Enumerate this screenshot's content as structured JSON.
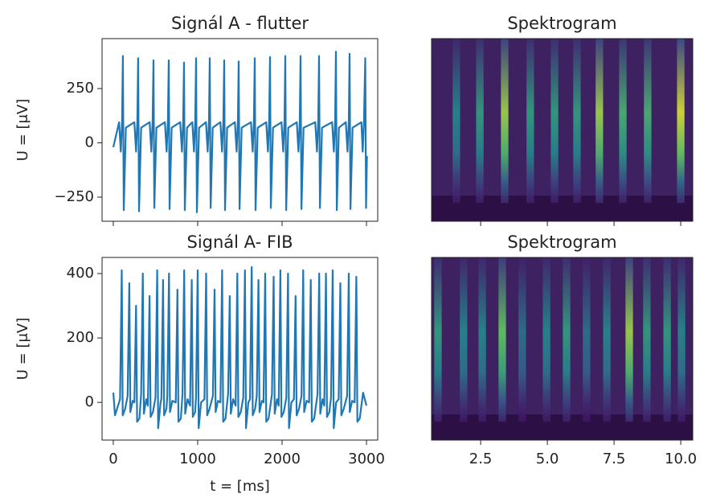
{
  "chart_data": [
    {
      "type": "line",
      "title": "Signál A - flutter",
      "ylabel": "U = [μV]",
      "color": "#1f77b4",
      "x": [
        0,
        69,
        89,
        104,
        114,
        124,
        149,
        250,
        270,
        285,
        295,
        305,
        330,
        431,
        451,
        466,
        476,
        486,
        511,
        612,
        632,
        647,
        657,
        667,
        692,
        793,
        813,
        828,
        838,
        848,
        873,
        936,
        956,
        971,
        981,
        991,
        1016,
        1098,
        1118,
        1133,
        1143,
        1153,
        1178,
        1269,
        1289,
        1304,
        1314,
        1324,
        1349,
        1441,
        1461,
        1476,
        1486,
        1496,
        1521,
        1631,
        1651,
        1666,
        1676,
        1686,
        1711,
        1812,
        1832,
        1847,
        1857,
        1867,
        1892,
        1993,
        2013,
        2028,
        2038,
        2048,
        2073,
        2174,
        2194,
        2209,
        2219,
        2229,
        2254,
        2393,
        2413,
        2428,
        2438,
        2448,
        2473,
        2593,
        2613,
        2628,
        2638,
        2648,
        2673,
        2755,
        2775,
        2790,
        2800,
        2810,
        2835,
        2940,
        2955,
        2970,
        2985,
        2995,
        3005
      ],
      "values": [
        -20,
        95,
        -40,
        100,
        400,
        -310,
        70,
        95,
        -40,
        100,
        390,
        -315,
        70,
        95,
        -40,
        100,
        380,
        -300,
        70,
        95,
        -40,
        100,
        380,
        -305,
        70,
        95,
        -40,
        100,
        370,
        -310,
        70,
        95,
        -40,
        100,
        390,
        -320,
        70,
        95,
        -40,
        100,
        390,
        -300,
        70,
        95,
        -40,
        100,
        380,
        -310,
        70,
        95,
        -40,
        100,
        375,
        -305,
        70,
        95,
        -40,
        100,
        390,
        -310,
        70,
        95,
        -40,
        100,
        395,
        -300,
        70,
        95,
        -40,
        100,
        400,
        -310,
        70,
        95,
        -40,
        100,
        400,
        -305,
        70,
        95,
        -40,
        100,
        400,
        -300,
        70,
        95,
        -40,
        100,
        420,
        -310,
        70,
        95,
        -40,
        100,
        410,
        -305,
        70,
        95,
        -40,
        100,
        390,
        -300,
        -60
      ],
      "xlim": [
        -133,
        3133
      ],
      "ylim": [
        -361,
        480
      ],
      "xticks": [
        0,
        1000,
        2000,
        3000
      ],
      "yticks": [
        {
          "value": -250,
          "label": "−250"
        },
        0,
        250
      ]
    },
    {
      "type": "spectrogram",
      "title": "Spektrogram",
      "x": [
        1.59,
        2.47,
        3.4,
        4.36,
        5.27,
        6.11,
        6.95,
        7.83,
        8.76,
        10.0
      ],
      "values": [
        0.5,
        0.6,
        0.9,
        0.6,
        0.6,
        0.6,
        0.9,
        0.7,
        0.7,
        1.0
      ],
      "xlim": [
        0.66,
        10.45
      ],
      "xticks": [
        2.5,
        {
          "value": 5,
          "label": "5.0"
        },
        7.5,
        {
          "value": 10,
          "label": "10.0"
        }
      ]
    },
    {
      "type": "line",
      "title": "Signál A- FIB",
      "ylabel": "U = [μV]",
      "xlabel": "t = [ms]",
      "color": "#1f77b4",
      "x": [
        0,
        20,
        80,
        100,
        112,
        140,
        170,
        190,
        202,
        230,
        250,
        270,
        282,
        310,
        330,
        350,
        362,
        390,
        410,
        430,
        442,
        470,
        500,
        520,
        532,
        560,
        570,
        590,
        602,
        630,
        640,
        660,
        672,
        700,
        740,
        760,
        772,
        800,
        820,
        840,
        852,
        880,
        910,
        930,
        942,
        970,
        980,
        1000,
        1012,
        1040,
        1080,
        1100,
        1112,
        1140,
        1180,
        1200,
        1212,
        1240,
        1270,
        1290,
        1302,
        1330,
        1360,
        1380,
        1392,
        1420,
        1450,
        1470,
        1482,
        1510,
        1540,
        1560,
        1572,
        1600,
        1620,
        1640,
        1652,
        1680,
        1700,
        1720,
        1732,
        1760,
        1780,
        1800,
        1812,
        1840,
        1880,
        1900,
        1912,
        1940,
        1960,
        1980,
        1992,
        2020,
        2050,
        2070,
        2082,
        2110,
        2140,
        2160,
        2172,
        2200,
        2230,
        2250,
        2262,
        2290,
        2320,
        2340,
        2352,
        2380,
        2420,
        2440,
        2452,
        2480,
        2500,
        2520,
        2532,
        2560,
        2580,
        2600,
        2612,
        2640,
        2670,
        2690,
        2702,
        2730,
        2770,
        2790,
        2802,
        2830,
        2860,
        2880,
        2892,
        2920,
        2960,
        3000
      ],
      "values": [
        30,
        -40,
        10,
        410,
        -40,
        -20,
        20,
        370,
        -30,
        5,
        0,
        300,
        -60,
        -50,
        25,
        400,
        -35,
        10,
        -10,
        330,
        -45,
        -30,
        15,
        410,
        -80,
        0,
        10,
        380,
        -40,
        -20,
        20,
        400,
        -30,
        5,
        0,
        350,
        -60,
        -50,
        25,
        410,
        -35,
        10,
        -10,
        380,
        -45,
        -30,
        15,
        410,
        -80,
        0,
        10,
        400,
        -40,
        -20,
        20,
        350,
        -30,
        5,
        0,
        410,
        -60,
        -50,
        25,
        330,
        -35,
        10,
        -10,
        400,
        -45,
        -30,
        15,
        410,
        -80,
        0,
        10,
        420,
        -40,
        -20,
        20,
        380,
        -30,
        5,
        0,
        400,
        -60,
        -50,
        25,
        390,
        -35,
        10,
        -10,
        410,
        -45,
        -30,
        15,
        400,
        -80,
        0,
        10,
        330,
        -40,
        -20,
        20,
        410,
        -30,
        5,
        0,
        380,
        -60,
        -50,
        25,
        400,
        -35,
        10,
        -10,
        400,
        -45,
        -30,
        15,
        410,
        -80,
        0,
        10,
        370,
        -40,
        -20,
        20,
        400,
        -30,
        5,
        0,
        390,
        -60,
        -50,
        30,
        -10
      ],
      "xlim": [
        -133,
        3133
      ],
      "ylim": [
        -117,
        450
      ],
      "xticks": [
        0,
        1000,
        2000,
        3000
      ],
      "yticks": [
        0,
        200,
        400
      ]
    },
    {
      "type": "spectrogram",
      "title": "Spektrogram",
      "x": [
        0.9,
        1.86,
        2.56,
        3.31,
        4.06,
        4.97,
        5.72,
        6.47,
        7.23,
        8.07,
        8.73,
        9.49,
        10.03
      ],
      "values": [
        0.6,
        0.5,
        0.5,
        0.8,
        0.4,
        0.5,
        0.6,
        0.4,
        0.5,
        0.9,
        0.6,
        0.6,
        0.5
      ],
      "xlim": [
        0.66,
        10.45
      ],
      "xticks": [
        2.5,
        {
          "value": 5,
          "label": "5.0"
        },
        7.5,
        {
          "value": 10,
          "label": "10.0"
        }
      ]
    }
  ]
}
